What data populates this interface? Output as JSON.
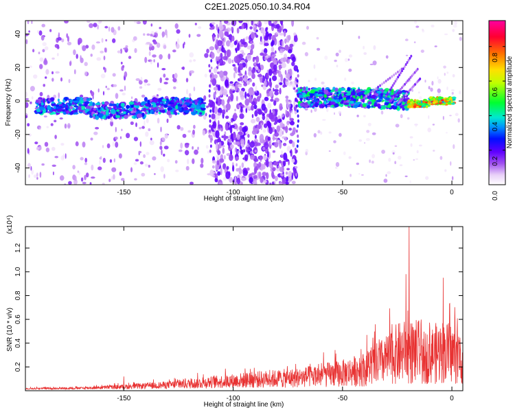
{
  "title": "C2E1.2025.050.10.34.R04",
  "chart_data": [
    {
      "type": "heatmap",
      "xlabel": "Height of straight line (km)",
      "ylabel": "Frequency (Hz)",
      "xlim": [
        -195,
        5
      ],
      "ylim": [
        -50,
        48
      ],
      "xticks": [
        -150,
        -100,
        -50,
        0
      ],
      "yticks": [
        -40,
        -20,
        0,
        20,
        40
      ],
      "colorbar": {
        "label": "Normalized spectral amplitude",
        "range": [
          0,
          0.95
        ],
        "ticks": [
          0.0,
          0.2,
          0.4,
          0.6,
          0.8
        ],
        "tick_labels": [
          "0.0",
          "0.2",
          "0.4",
          "0.6",
          "0.8"
        ]
      },
      "bands": [
        {
          "x": [
            -190,
            -113
          ],
          "freq": -3,
          "width": 5,
          "amp": 0.35
        },
        {
          "x": [
            -110,
            -72
          ],
          "freq": "broadband",
          "amp": 0.12
        },
        {
          "x": [
            -70,
            -20
          ],
          "freq": 2,
          "width": 5,
          "amp": 0.4
        },
        {
          "x": [
            -20,
            0
          ],
          "freq": 0,
          "width": 3,
          "amp": 0.85
        }
      ]
    },
    {
      "type": "line",
      "xlabel": "Height of straight line (km)",
      "ylabel": "SNR (10 * v/v)",
      "y_multiplier": "(x10⁴)",
      "xlim": [
        -195,
        5
      ],
      "ylim": [
        0,
        1.38
      ],
      "xticks": [
        -150,
        -100,
        -50,
        0
      ],
      "yticks": [
        0.2,
        0.4,
        0.6,
        0.8,
        1.0,
        1.2
      ],
      "color": "#e83232",
      "envelope": [
        [
          -195,
          0.02
        ],
        [
          -170,
          0.03
        ],
        [
          -150,
          0.06
        ],
        [
          -130,
          0.1
        ],
        [
          -110,
          0.16
        ],
        [
          -90,
          0.22
        ],
        [
          -70,
          0.26
        ],
        [
          -50,
          0.36
        ],
        [
          -40,
          0.45
        ],
        [
          -30,
          0.65
        ],
        [
          -25,
          0.8
        ],
        [
          -20,
          0.85
        ],
        [
          -15,
          0.65
        ],
        [
          -10,
          0.75
        ],
        [
          -5,
          0.85
        ],
        [
          0,
          0.8
        ],
        [
          5,
          0.65
        ]
      ],
      "peaks": [
        [
          -19.5,
          1.38
        ],
        [
          -21,
          0.98
        ],
        [
          -4,
          0.95
        ],
        [
          -150,
          0.12
        ]
      ]
    }
  ]
}
